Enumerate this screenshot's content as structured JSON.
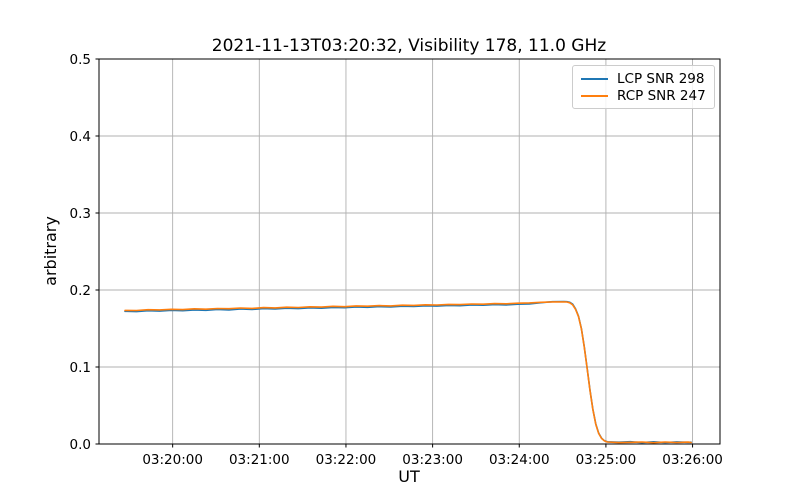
{
  "figure": {
    "title": "2021-11-13T03:20:32, Visibility 178, 11.0 GHz",
    "xlabel": "UT",
    "ylabel": "arbitrary"
  },
  "legend": {
    "position": "upper right",
    "entries": [
      {
        "label": "LCP SNR 298",
        "color": "#1f77b4"
      },
      {
        "label": "RCP SNR 247",
        "color": "#ff7f0e"
      }
    ]
  },
  "colors": {
    "grid": "#b0b0b0",
    "spine": "#000000",
    "background": "#ffffff",
    "lcp": "#1f77b4",
    "rcp": "#ff7f0e"
  },
  "chart_data": {
    "type": "line",
    "title": "2021-11-13T03:20:32, Visibility 178, 11.0 GHz",
    "xlabel": "UT",
    "ylabel": "arbitrary",
    "grid": true,
    "legend_position": "upper right",
    "x_unit": "seconds after 03:19:00 UT",
    "x_axis": {
      "min_s": 9,
      "max_s": 439,
      "ticks": [
        {
          "s": 60,
          "label": "03:20:00"
        },
        {
          "s": 120,
          "label": "03:21:00"
        },
        {
          "s": 180,
          "label": "03:22:00"
        },
        {
          "s": 240,
          "label": "03:23:00"
        },
        {
          "s": 300,
          "label": "03:24:00"
        },
        {
          "s": 360,
          "label": "03:25:00"
        },
        {
          "s": 420,
          "label": "03:26:00"
        }
      ]
    },
    "y_axis": {
      "min": 0.0,
      "max": 0.5,
      "ticks": [
        {
          "v": 0.0,
          "label": "0.0"
        },
        {
          "v": 0.1,
          "label": "0.1"
        },
        {
          "v": 0.2,
          "label": "0.2"
        },
        {
          "v": 0.3,
          "label": "0.3"
        },
        {
          "v": 0.4,
          "label": "0.4"
        },
        {
          "v": 0.5,
          "label": "0.5"
        }
      ]
    },
    "x_s": [
      27,
      35,
      43,
      51,
      59,
      67,
      75,
      83,
      91,
      99,
      107,
      115,
      123,
      131,
      139,
      147,
      155,
      163,
      171,
      179,
      187,
      195,
      203,
      211,
      219,
      227,
      235,
      243,
      251,
      259,
      267,
      275,
      283,
      291,
      299,
      307,
      315,
      323,
      331,
      333,
      335,
      337,
      339,
      341,
      343,
      345,
      347,
      349,
      351,
      353,
      355,
      357,
      359,
      361,
      369,
      377,
      385,
      393,
      401,
      409,
      417,
      419
    ],
    "series": [
      {
        "name": "LCP SNR 298",
        "color": "#1f77b4",
        "values": [
          0.1724,
          0.172,
          0.1731,
          0.1726,
          0.1737,
          0.1731,
          0.1742,
          0.1737,
          0.1748,
          0.1742,
          0.1753,
          0.1748,
          0.1758,
          0.1753,
          0.1764,
          0.1759,
          0.1769,
          0.1764,
          0.1774,
          0.177,
          0.1779,
          0.1775,
          0.1785,
          0.178,
          0.179,
          0.1786,
          0.1795,
          0.1791,
          0.18,
          0.1796,
          0.1805,
          0.1802,
          0.181,
          0.1807,
          0.1815,
          0.182,
          0.1835,
          0.1848,
          0.185,
          0.1848,
          0.184,
          0.1815,
          0.1755,
          0.166,
          0.15,
          0.127,
          0.099,
          0.07,
          0.045,
          0.026,
          0.014,
          0.0075,
          0.0042,
          0.0028,
          0.0024,
          0.003,
          0.0018,
          0.0028,
          0.002,
          0.0027,
          0.0022,
          0.0024
        ]
      },
      {
        "name": "RCP SNR 247",
        "color": "#ff7f0e",
        "values": [
          0.1735,
          0.1734,
          0.1744,
          0.1741,
          0.1749,
          0.1746,
          0.1756,
          0.1751,
          0.176,
          0.1757,
          0.1766,
          0.1761,
          0.1772,
          0.1767,
          0.1777,
          0.1773,
          0.1782,
          0.1778,
          0.1788,
          0.1783,
          0.1793,
          0.1789,
          0.1798,
          0.1794,
          0.1803,
          0.18,
          0.1808,
          0.1805,
          0.1813,
          0.181,
          0.1818,
          0.1816,
          0.1823,
          0.1821,
          0.1828,
          0.1832,
          0.184,
          0.1845,
          0.1846,
          0.1844,
          0.1834,
          0.1806,
          0.1748,
          0.1655,
          0.1495,
          0.1265,
          0.0985,
          0.0695,
          0.0445,
          0.0255,
          0.0136,
          0.0072,
          0.004,
          0.0026,
          0.0018,
          0.0022,
          0.0026,
          0.0017,
          0.0026,
          0.0019,
          0.0025,
          0.002
        ]
      }
    ]
  }
}
